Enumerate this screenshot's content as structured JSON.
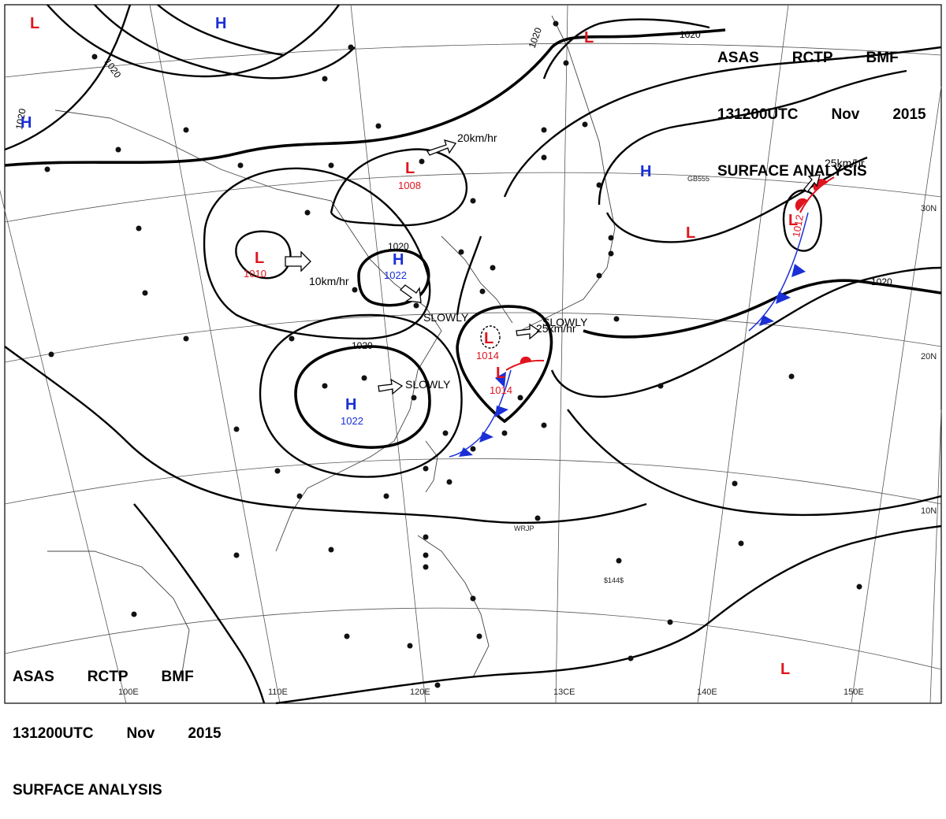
{
  "header": {
    "agency": "ASAS",
    "station": "RCTP",
    "office": "BMF",
    "time": "131200UTC",
    "month": "Nov",
    "year": "2015",
    "title": "SURFACE ANALYSIS"
  },
  "latitude_labels": [
    {
      "text": "30N",
      "lat": 30
    },
    {
      "text": "20N",
      "lat": 20
    },
    {
      "text": "10N",
      "lat": 10
    }
  ],
  "longitude_labels": [
    {
      "text": "100E",
      "lon": 100
    },
    {
      "text": "110E",
      "lon": 110
    },
    {
      "text": "120E",
      "lon": 120
    },
    {
      "text": "13CE",
      "lon": 130
    },
    {
      "text": "140E",
      "lon": 140
    },
    {
      "text": "150E",
      "lon": 150
    }
  ],
  "pressure_centers": [
    {
      "type": "L",
      "value": ""
    },
    {
      "type": "H",
      "value": ""
    },
    {
      "type": "H",
      "value": ""
    },
    {
      "type": "L",
      "value": "1008"
    },
    {
      "type": "L",
      "value": "1010"
    },
    {
      "type": "H",
      "value": "1022"
    },
    {
      "type": "H",
      "value": "1022"
    },
    {
      "type": "L",
      "value": "1014"
    },
    {
      "type": "L",
      "value": "1014"
    },
    {
      "type": "H",
      "value": ""
    },
    {
      "type": "L",
      "value": ""
    },
    {
      "type": "L",
      "value": ""
    },
    {
      "type": "L",
      "value": "1012"
    },
    {
      "type": "L",
      "value": ""
    }
  ],
  "isobar_labels": [
    "1020",
    "1020",
    "1020",
    "1020",
    "1020",
    "1020",
    "1020"
  ],
  "movements": [
    {
      "text": "20km/hr"
    },
    {
      "text": "10km/hr"
    },
    {
      "text": "SLOWLY"
    },
    {
      "text": "SLOWLY"
    },
    {
      "text": "SLOWLY"
    },
    {
      "text": "25km/hr"
    },
    {
      "text": "25km/hr"
    }
  ],
  "station_labels": [
    "GB555",
    "WRJP",
    "$144$"
  ],
  "colors": {
    "high": "#1a2fd6",
    "low": "#e0141e",
    "cold_front": "#1a2fd6",
    "warm_front": "#e0141e"
  }
}
